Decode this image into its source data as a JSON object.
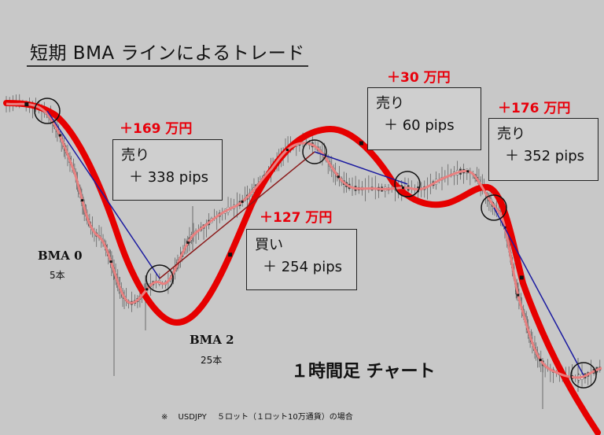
{
  "title": "短期 BMA ラインによるトレード",
  "timeframe_label": "１時間足 チャート",
  "footnote": "※　 USDJPY　 ５ロット（１ロット10万通貨）の場合",
  "indicators": [
    {
      "name": "BMA 0",
      "bars": "5本"
    },
    {
      "name": "BMA 2",
      "bars": "25本"
    }
  ],
  "trades": [
    {
      "profit": "＋169 万円",
      "side": "売り",
      "pips": "＋ 338 pips"
    },
    {
      "profit": "＋127 万円",
      "side": "買い",
      "pips": "＋ 254 pips"
    },
    {
      "profit": "＋30 万円",
      "side": "売り",
      "pips": "＋ 60 pips"
    },
    {
      "profit": "＋176 万円",
      "side": "売り",
      "pips": "＋ 352 pips"
    }
  ],
  "colors": {
    "background": "#c8c8c8",
    "bma_fast": "#e88080",
    "bma_slow": "#e60000",
    "sell_line": "#1a1aa0",
    "buy_line": "#8b1a1a",
    "profit_text": "#e8000b"
  },
  "chart_data": {
    "type": "line",
    "series": [
      {
        "name": "BMA 0"
      },
      {
        "name": "BMA 2"
      }
    ]
  }
}
